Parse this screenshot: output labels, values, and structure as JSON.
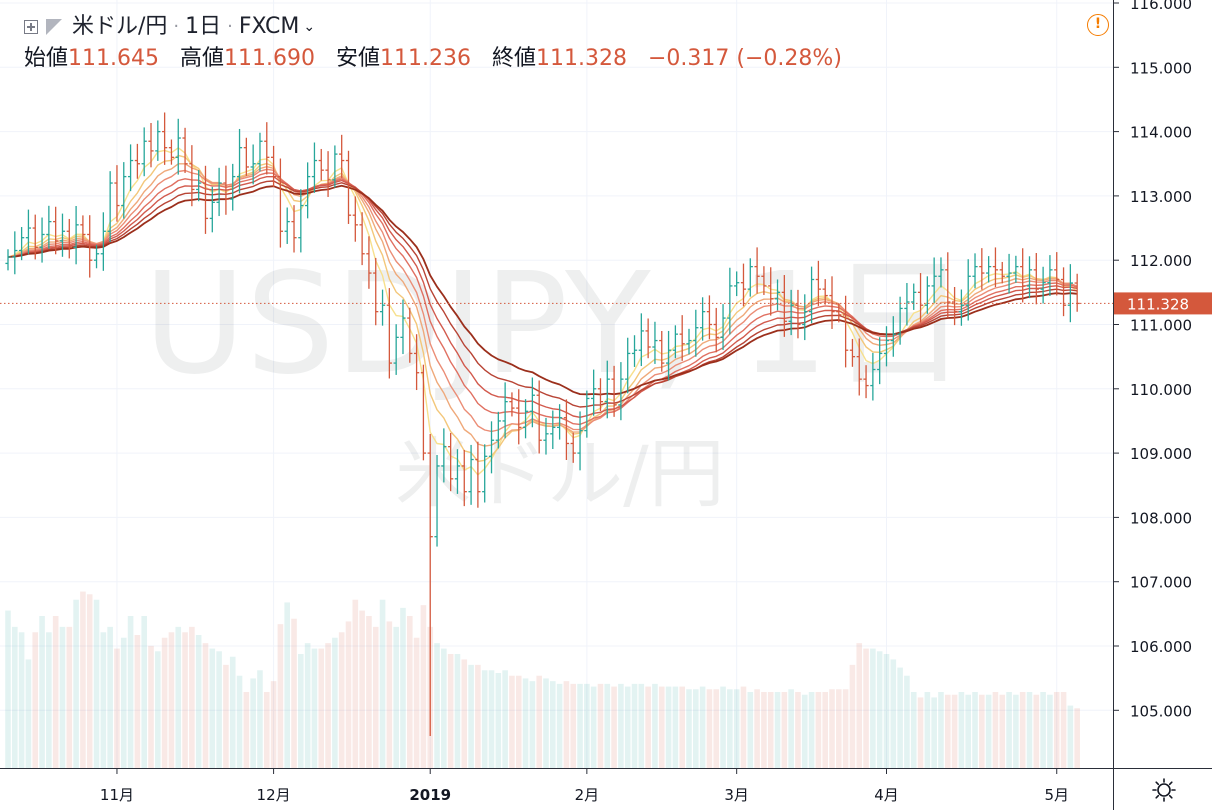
{
  "header": {
    "symbol": "米ドル/円",
    "interval": "1日",
    "source": "FXCM",
    "open_label": "始値",
    "open": "111.645",
    "high_label": "高値",
    "high": "111.690",
    "low_label": "安値",
    "low": "111.236",
    "close_label": "終値",
    "close": "111.328",
    "change": "−0.317 (−0.28%)",
    "collapse_icon": "expand-square-icon",
    "flag_icon": "flag-icon",
    "warning_icon": "exclamation-circle-icon",
    "settings_icon": "gear-icon"
  },
  "colors": {
    "up": "#26a69a",
    "down": "#d4583c",
    "price_label": "#d4583c",
    "ribbon": [
      "#f7e08c",
      "#f3c77a",
      "#efa97a",
      "#eb8d76",
      "#e07061",
      "#d25a4d",
      "#b84435",
      "#9b2f1c"
    ]
  },
  "chart_data": {
    "type": "candlestick",
    "watermark": [
      "USDJPY, 1日",
      "米ドル/円"
    ],
    "y_axis": {
      "ticks": [
        "116.000",
        "115.000",
        "114.000",
        "113.000",
        "112.000",
        "111.000",
        "110.000",
        "109.000",
        "108.000",
        "107.000",
        "106.000",
        "105.000"
      ],
      "range": [
        104.4,
        116.0
      ],
      "last_price_label": "111.328"
    },
    "x_axis": {
      "ticks": [
        {
          "label": "11月",
          "bar": 16
        },
        {
          "label": "12月",
          "bar": 39
        },
        {
          "label": "2019",
          "bar": 62
        },
        {
          "label": "2月",
          "bar": 85
        },
        {
          "label": "3月",
          "bar": 107
        },
        {
          "label": "4月",
          "bar": 129
        },
        {
          "label": "5月",
          "bar": 154
        }
      ]
    },
    "close": [
      112.05,
      112.15,
      112.35,
      112.5,
      112.2,
      112.4,
      112.6,
      112.3,
      112.45,
      112.2,
      112.55,
      112.4,
      112.0,
      112.1,
      112.45,
      113.2,
      112.85,
      113.3,
      113.55,
      113.5,
      113.85,
      113.7,
      114.0,
      113.75,
      113.6,
      113.9,
      113.5,
      113.1,
      113.2,
      112.65,
      112.9,
      113.2,
      112.95,
      113.3,
      113.75,
      113.45,
      113.5,
      113.85,
      113.6,
      113.3,
      112.45,
      112.6,
      112.35,
      112.85,
      113.3,
      113.55,
      113.4,
      113.25,
      113.65,
      113.55,
      112.7,
      112.55,
      112.1,
      111.8,
      111.2,
      111.3,
      110.4,
      110.8,
      111.1,
      110.55,
      110.25,
      109.0,
      107.7,
      108.8,
      109.1,
      108.6,
      108.8,
      108.4,
      108.9,
      108.4,
      108.95,
      109.2,
      109.5,
      109.8,
      109.7,
      109.4,
      109.65,
      109.9,
      109.2,
      109.3,
      109.4,
      109.55,
      109.15,
      109.0,
      109.35,
      109.85,
      110.0,
      109.8,
      110.15,
      109.75,
      110.15,
      110.55,
      110.6,
      110.9,
      110.65,
      110.75,
      110.4,
      110.6,
      110.85,
      110.7,
      110.75,
      110.95,
      111.2,
      111.0,
      110.8,
      111.1,
      111.6,
      111.65,
      111.55,
      111.9,
      111.75,
      111.6,
      111.4,
      111.5,
      111.05,
      111.3,
      111.0,
      111.2,
      111.7,
      111.55,
      111.45,
      111.2,
      111.15,
      110.6,
      110.5,
      110.15,
      110.05,
      110.3,
      110.55,
      110.75,
      110.85,
      111.25,
      111.35,
      111.5,
      111.3,
      111.6,
      111.75,
      111.85,
      111.35,
      111.2,
      111.3,
      111.75,
      111.9,
      111.8,
      111.9,
      111.85,
      111.75,
      111.8,
      111.9,
      111.6,
      111.85,
      111.55,
      111.65,
      111.85,
      111.7,
      111.3,
      111.645,
      111.328
    ],
    "volume": [
      58,
      52,
      50,
      40,
      50,
      56,
      50,
      56,
      52,
      52,
      62,
      65,
      64,
      62,
      50,
      52,
      44,
      48,
      56,
      49,
      56,
      45,
      43,
      48,
      50,
      52,
      50,
      52,
      49,
      46,
      44,
      43,
      38,
      41,
      34,
      28,
      33,
      36,
      28,
      32,
      53,
      61,
      55,
      42,
      46,
      44,
      44,
      46,
      48,
      50,
      54,
      62,
      58,
      56,
      52,
      62,
      54,
      52,
      59,
      56,
      48,
      60,
      52,
      46,
      44,
      42,
      42,
      40,
      38,
      38,
      36,
      36,
      35,
      36,
      34,
      34,
      33,
      32,
      34,
      33,
      32,
      31,
      32,
      31,
      31,
      31,
      30,
      31,
      31,
      30,
      31,
      30,
      31,
      31,
      30,
      31,
      30,
      30,
      30,
      30,
      29,
      29,
      30,
      29,
      29,
      30,
      29,
      29,
      30,
      28,
      29,
      28,
      28,
      28,
      28,
      29,
      28,
      27,
      28,
      28,
      28,
      29,
      29,
      29,
      38,
      46,
      44,
      44,
      43,
      42,
      40,
      37,
      34,
      28,
      26,
      28,
      26,
      28,
      27,
      27,
      28,
      27,
      28,
      27,
      27,
      28,
      27,
      28,
      27,
      28,
      28,
      27,
      28,
      27,
      28,
      28,
      23,
      22
    ]
  }
}
